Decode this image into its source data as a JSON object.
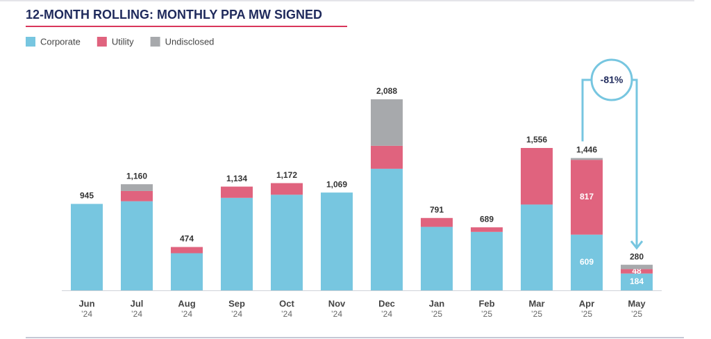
{
  "chart_data": {
    "type": "stacked_bar",
    "title": "12-MONTH ROLLING: MONTHLY PPA MW SIGNED",
    "categories": [
      "Jun",
      "Jul",
      "Aug",
      "Sep",
      "Oct",
      "Nov",
      "Dec",
      "Jan",
      "Feb",
      "Mar",
      "Apr",
      "May"
    ],
    "category_years": [
      "’24",
      "’24",
      "’24",
      "’24",
      "’24",
      "’24",
      "’24",
      "’25",
      "’25",
      "’25",
      "’25",
      "’25"
    ],
    "series": [
      {
        "name": "Corporate",
        "color": "#77c6e0",
        "values": [
          945,
          974,
          406,
          1011,
          1045,
          1069,
          1329,
          694,
          639,
          938,
          609,
          184
        ],
        "value_labels": [
          null,
          null,
          null,
          null,
          null,
          null,
          null,
          null,
          null,
          null,
          "609",
          "184"
        ]
      },
      {
        "name": "Utility",
        "color": "#e0637e",
        "values": [
          0,
          112,
          68,
          123,
          127,
          0,
          251,
          97,
          50,
          618,
          817,
          48
        ],
        "value_labels": [
          null,
          null,
          null,
          null,
          null,
          null,
          null,
          null,
          null,
          null,
          "817",
          "48"
        ]
      },
      {
        "name": "Undisclosed",
        "color": "#a7a9ac",
        "values": [
          0,
          74,
          0,
          0,
          0,
          0,
          508,
          0,
          0,
          0,
          20,
          48
        ],
        "value_labels": [
          null,
          null,
          null,
          null,
          null,
          null,
          null,
          null,
          null,
          null,
          null,
          null
        ]
      }
    ],
    "total_labels": [
      "945",
      "1,160",
      "474",
      "1,134",
      "1,172",
      "1,069",
      "2,088",
      "791",
      "689",
      "1,556",
      "1,446",
      "280"
    ],
    "annotation": "-81%",
    "ylim": [
      0,
      2300
    ],
    "legend": "top-left"
  }
}
